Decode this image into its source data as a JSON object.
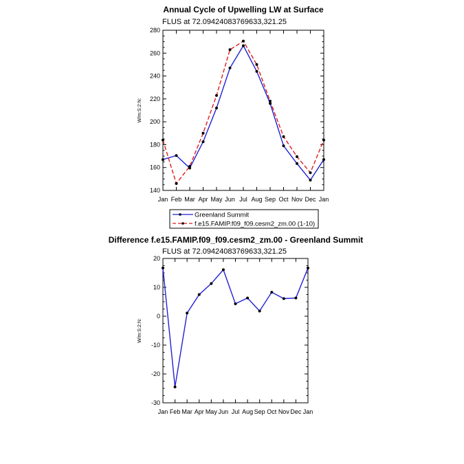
{
  "chart_data": [
    {
      "type": "line",
      "title": "Annual Cycle of Upwelling LW at Surface",
      "subtitle": "FLUS at 72.09424083769633,321.25",
      "xlabel": "",
      "ylabel": "W/m:S:2:N:",
      "categories": [
        "Jan",
        "Feb",
        "Mar",
        "Apr",
        "May",
        "Jun",
        "Jul",
        "Aug",
        "Sep",
        "Oct",
        "Nov",
        "Dec",
        "Jan"
      ],
      "ylim": [
        140,
        280
      ],
      "yticks": [
        "140",
        "160",
        "180",
        "200",
        "220",
        "240",
        "260",
        "280"
      ],
      "legend_position": "bottom",
      "series": [
        {
          "name": "Greenland Summit",
          "color": "#1f1fd6",
          "style": "solid",
          "values": [
            167,
            170.5,
            159.5,
            182.5,
            212,
            247,
            266.5,
            244,
            216,
            179,
            163.5,
            149,
            167
          ]
        },
        {
          "name": "f.e15.FAMIP.f09_f09.cesm2_zm.00 (1-10)",
          "color": "#e01b1b",
          "style": "dashed",
          "values": [
            184,
            146,
            161,
            190,
            223,
            263,
            270.5,
            250,
            218,
            187,
            169.5,
            155.5,
            184
          ]
        }
      ]
    },
    {
      "type": "line",
      "title": "Difference f.e15.FAMIP.f09_f09.cesm2_zm.00 - Greenland Summit",
      "subtitle": "FLUS at 72.09424083769633,321.25",
      "xlabel": "",
      "ylabel": "W/m:S:2:N:",
      "categories": [
        "Jan",
        "Feb",
        "Mar",
        "Apr",
        "May",
        "Jun",
        "Jul",
        "Aug",
        "Sep",
        "Oct",
        "Nov",
        "Dec",
        "Jan"
      ],
      "ylim": [
        -30,
        20
      ],
      "yticks": [
        "-30",
        "-20",
        "-10",
        "0",
        "10",
        "20"
      ],
      "series": [
        {
          "color": "#1f1fd6",
          "style": "solid",
          "values": [
            16.7,
            -24.5,
            1.1,
            7.5,
            11.3,
            16.1,
            4.3,
            6.3,
            1.8,
            8.3,
            6.1,
            6.3,
            16.7
          ]
        }
      ]
    }
  ]
}
